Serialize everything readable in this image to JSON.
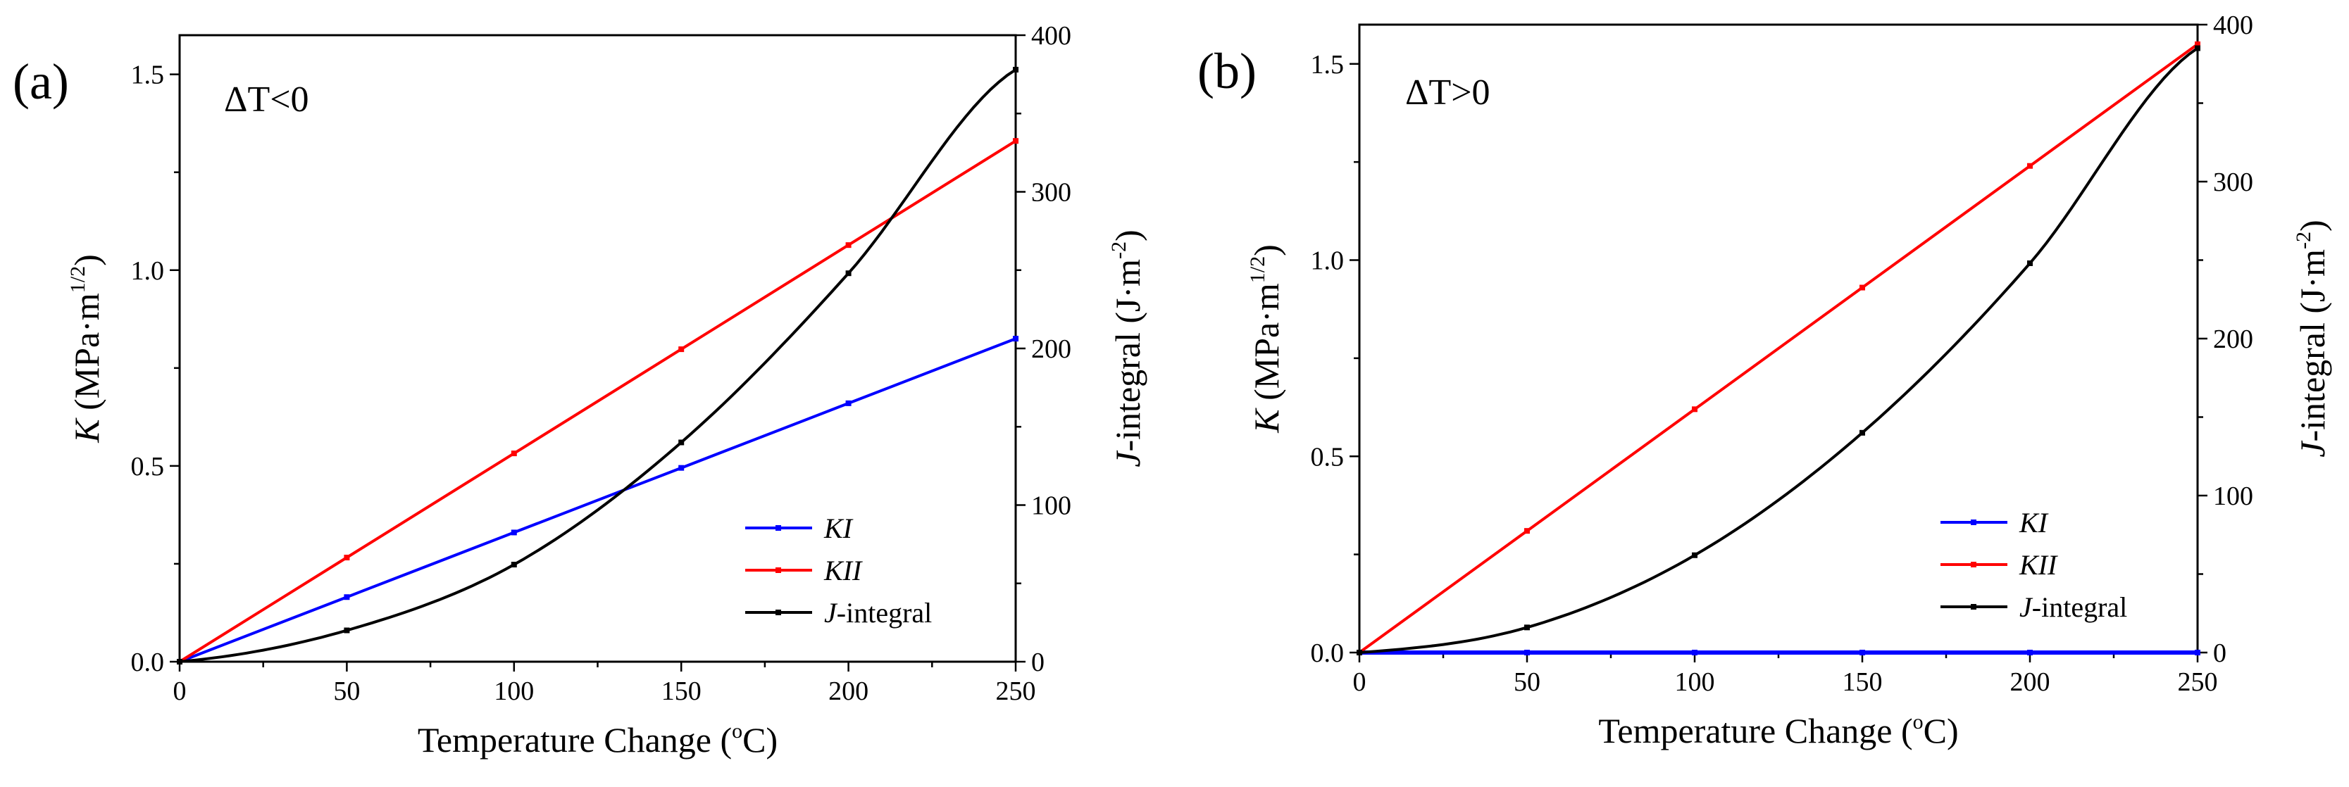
{
  "chart_data": [
    {
      "type": "line",
      "panel_label": "(a)",
      "condition": "ΔT<0",
      "x": [
        0,
        50,
        100,
        150,
        200,
        250
      ],
      "xlim": [
        0,
        250
      ],
      "xticks": [
        "0",
        "50",
        "100",
        "150",
        "200",
        "250"
      ],
      "xlabel": "Temperature Change (",
      "xlabel_sup": "o",
      "xlabel_tail": "C)",
      "ylim_left": [
        0,
        1.6
      ],
      "yticks_left": [
        "0.0",
        "0.5",
        "1.0",
        "1.5"
      ],
      "ylabel_left": {
        "italic": "K",
        "rest": " (MPa·m",
        "sup": "1/2",
        "close": ")"
      },
      "ylim_right": [
        0,
        400
      ],
      "yticks_right": [
        "0",
        "100",
        "200",
        "300",
        "400"
      ],
      "ylabel_right": {
        "italic": "J",
        "rest": "-integral (J·m",
        "sup": "-2",
        "close": ")"
      },
      "series": [
        {
          "name": "KI",
          "axis": "left",
          "color": "#0000ff",
          "values": [
            0,
            0.165,
            0.33,
            0.495,
            0.66,
            0.825
          ]
        },
        {
          "name": "KII",
          "axis": "left",
          "color": "#ff0000",
          "values": [
            0,
            0.266,
            0.532,
            0.798,
            1.064,
            1.33
          ]
        },
        {
          "name": "J-integral",
          "axis": "right",
          "color": "#000000",
          "values": [
            0,
            20,
            62,
            140,
            248,
            378
          ]
        }
      ],
      "legend": [
        {
          "label": "KI",
          "italic": "KI",
          "rest": "",
          "color": "#0000ff"
        },
        {
          "label": "KII",
          "italic": "KII",
          "rest": "",
          "color": "#ff0000"
        },
        {
          "label": "J-integral",
          "italic": "J",
          "rest": "-integral",
          "color": "#000000"
        }
      ],
      "legend_position": "bottom-right"
    },
    {
      "type": "line",
      "panel_label": "(b)",
      "condition": "ΔT>0",
      "x": [
        0,
        50,
        100,
        150,
        200,
        250
      ],
      "xlim": [
        0,
        250
      ],
      "xticks": [
        "0",
        "50",
        "100",
        "150",
        "200",
        "250"
      ],
      "xlabel": "Temperature Change (",
      "xlabel_sup": "o",
      "xlabel_tail": "C)",
      "ylim_left": [
        0,
        1.6
      ],
      "yticks_left": [
        "0.0",
        "0.5",
        "1.0",
        "1.5"
      ],
      "ylabel_left": {
        "italic": "K",
        "rest": " (MPa·m",
        "sup": "1/2",
        "close": ")"
      },
      "ylim_right": [
        0,
        400
      ],
      "yticks_right": [
        "0",
        "100",
        "200",
        "300",
        "400"
      ],
      "ylabel_right": {
        "italic": "J",
        "rest": "-integral (J·m",
        "sup": "-2",
        "close": ")"
      },
      "series": [
        {
          "name": "KI",
          "axis": "left",
          "color": "#0000ff",
          "values": [
            0,
            0,
            0,
            0,
            0,
            0
          ]
        },
        {
          "name": "KII",
          "axis": "left",
          "color": "#ff0000",
          "values": [
            0,
            0.31,
            0.62,
            0.93,
            1.24,
            1.55
          ]
        },
        {
          "name": "J-integral",
          "axis": "right",
          "color": "#000000",
          "values": [
            0,
            16,
            62,
            140,
            248,
            385
          ]
        }
      ],
      "legend": [
        {
          "label": "KI",
          "italic": "KI",
          "rest": "",
          "color": "#0000ff"
        },
        {
          "label": "KII",
          "italic": "KII",
          "rest": "",
          "color": "#ff0000"
        },
        {
          "label": "J-integral",
          "italic": "J",
          "rest": "-integral",
          "color": "#000000"
        }
      ],
      "legend_position": "bottom-right"
    }
  ]
}
